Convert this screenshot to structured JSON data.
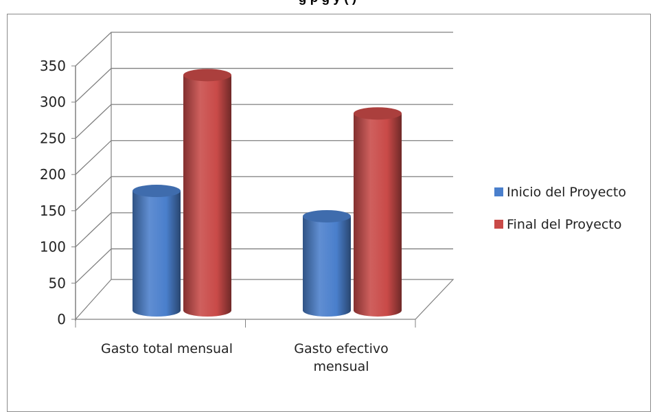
{
  "chart_data": {
    "type": "bar",
    "title": "",
    "title_visible_fragment": "g p         g    y ( )",
    "categories": [
      "Gasto total mensual",
      "Gasto efectivo mensual"
    ],
    "category_lines": [
      [
        "Gasto total mensual"
      ],
      [
        "Gasto efectivo",
        "mensual"
      ]
    ],
    "series": [
      {
        "name": "Inicio del Proyecto",
        "values": [
          165,
          130
        ],
        "color": "#4a7fcc"
      },
      {
        "name": "Final del Proyecto",
        "values": [
          325,
          272
        ],
        "color": "#c94a48"
      }
    ],
    "ylim": [
      0,
      350
    ],
    "yticks": [
      0,
      50,
      100,
      150,
      200,
      250,
      300,
      350
    ],
    "xlabel": "",
    "ylabel": "",
    "grid": true,
    "legend": "right",
    "style": "3d-cylinder"
  }
}
